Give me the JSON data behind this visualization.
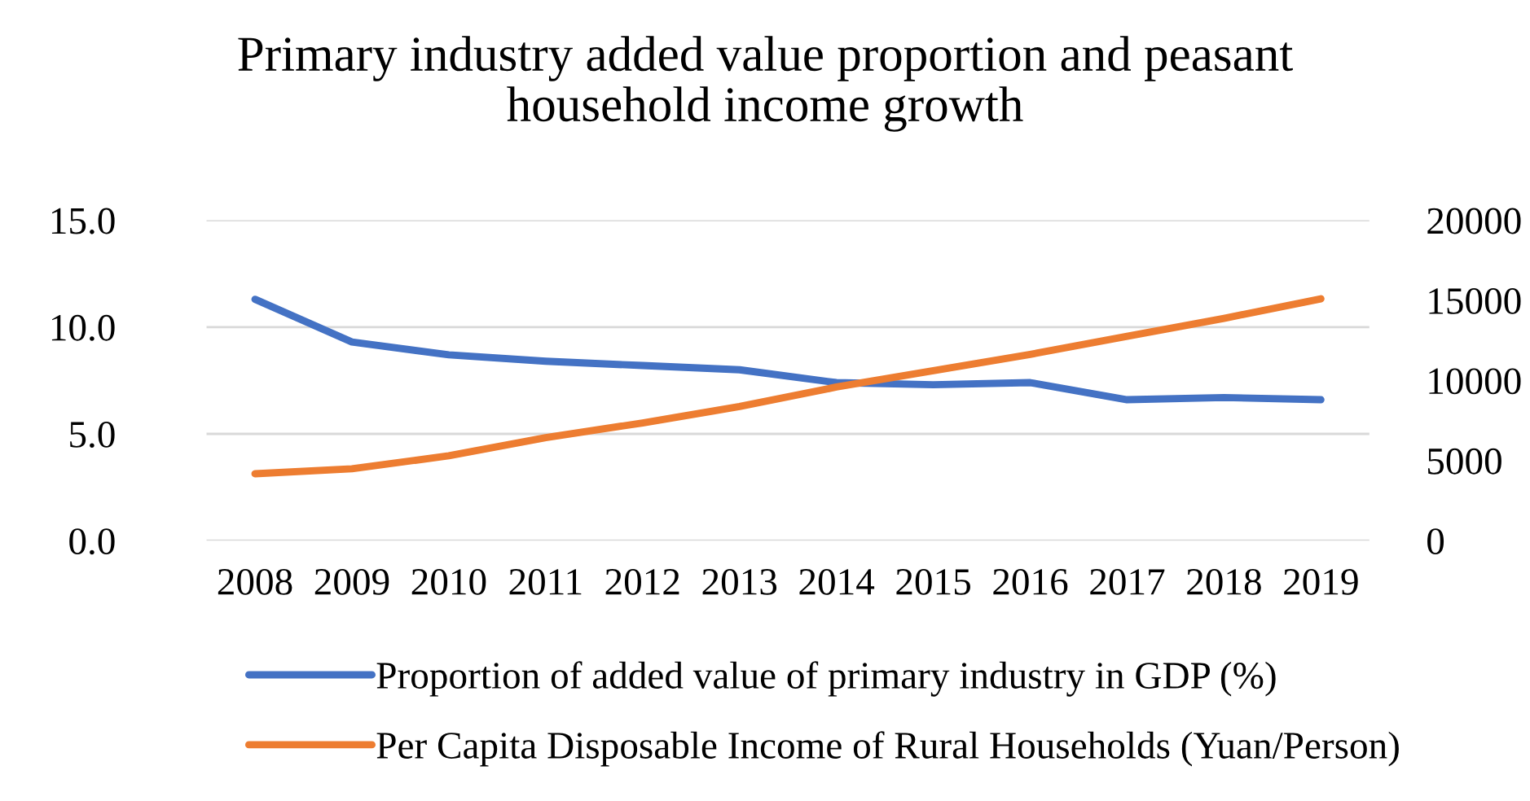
{
  "chart_data": {
    "type": "line",
    "title": "Primary industry added value proportion and peasant\nhousehold income growth",
    "categories": [
      "2008",
      "2009",
      "2010",
      "2011",
      "2012",
      "2013",
      "2014",
      "2015",
      "2016",
      "2017",
      "2018",
      "2019"
    ],
    "series": [
      {
        "name": "Proportion of added value of primary industry in GDP (%)",
        "color": "#4472c4",
        "values": [
          11.3,
          9.3,
          8.7,
          8.4,
          8.2,
          8.0,
          7.4,
          7.3,
          7.4,
          6.6,
          6.7,
          6.6
        ]
      },
      {
        "name": "Per Capita Disposable Income of Rural Households (Yuan/Person)",
        "color": "#ed7d31",
        "axis": "y2",
        "values": [
          4180,
          4490,
          5300,
          6430,
          7350,
          8370,
          9590,
          10610,
          11630,
          12760,
          13880,
          15100
        ]
      }
    ],
    "ylim": [
      0,
      15
    ],
    "yticks": [
      {
        "value": 0,
        "label": "0.0"
      },
      {
        "value": 5,
        "label": "5.0"
      },
      {
        "value": 10,
        "label": "10.0"
      },
      {
        "value": 15,
        "label": "15.0"
      }
    ],
    "y2lim": [
      0,
      20000
    ],
    "y2ticks": [
      0,
      5000,
      10000,
      15000,
      20000
    ],
    "grid": "y",
    "legend": "bottom",
    "marker": "none",
    "line_style": "solid"
  }
}
